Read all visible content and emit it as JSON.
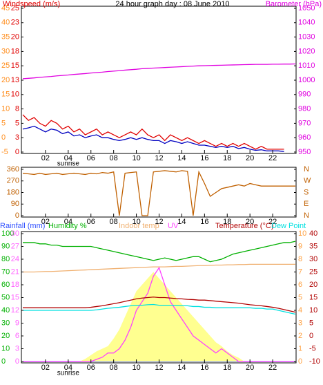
{
  "chart_data": [
    {
      "type": "line",
      "title": "24 hour graph day : 08 June 2010",
      "ylabel": "Windspeed (m/s)",
      "ylabel_color": "#e00000",
      "y2label": "Barometer (hPa)",
      "y2label_color": "#e000e0",
      "annotations": [
        {
          "text": "sunrise",
          "x": 4
        }
      ],
      "x": [
        0,
        0.5,
        1,
        1.5,
        2,
        2.5,
        3,
        3.5,
        4,
        4.5,
        5,
        5.5,
        6,
        6.5,
        7,
        7.5,
        8,
        8.5,
        9,
        9.5,
        10,
        10.5,
        11,
        11.5,
        12,
        12.5,
        13,
        13.5,
        14,
        14.5,
        15,
        15.5,
        16,
        16.5,
        17,
        17.5,
        18,
        18.5,
        19,
        19.5,
        20,
        20.5,
        21,
        21.5,
        22,
        22.5,
        23,
        23.5,
        24
      ],
      "xlim": [
        0,
        24
      ],
      "xticks": [
        {
          "value": 2,
          "label": "02"
        },
        {
          "value": 4,
          "label": "04"
        },
        {
          "value": 6,
          "label": "06"
        },
        {
          "value": 8,
          "label": "08"
        },
        10,
        12,
        14,
        16,
        18,
        20,
        22
      ],
      "ylim": [
        0,
        25
      ],
      "ytick_color": "#e00000",
      "yticks": [
        25,
        {
          "value": 22.5,
          "label": "23"
        },
        20,
        {
          "value": 17.5,
          "label": "18"
        },
        15,
        {
          "value": 12.5,
          "label": "13"
        },
        10,
        {
          "value": 7.5,
          "label": "8"
        },
        5,
        {
          "value": 2.5,
          "label": "3"
        },
        0
      ],
      "y3lim": [
        -5,
        45
      ],
      "y3tick_color": "#ff8c1a",
      "y3ticks": [
        45,
        40,
        35,
        30,
        25,
        20,
        15,
        10,
        5,
        0,
        -5
      ],
      "y2lim": [
        950,
        1050
      ],
      "y2tick_color": "#e000e0",
      "y2ticks": [
        1050,
        1040,
        1030,
        1020,
        1010,
        1000,
        990,
        980,
        970,
        960,
        950
      ],
      "series": [
        {
          "color": "#e00000",
          "axis": "y",
          "values": [
            6.5,
            5.5,
            6,
            5,
            4.5,
            5.5,
            5,
            4,
            4.5,
            3.5,
            4,
            3,
            3.5,
            4,
            3,
            3.5,
            3,
            2.5,
            3,
            3.5,
            3,
            4,
            3,
            2.5,
            3,
            2,
            3,
            2.5,
            2,
            2.5,
            2,
            1.5,
            2,
            1.5,
            1,
            1.5,
            1,
            1.5,
            1,
            1.5,
            1,
            0.5,
            1,
            0.5,
            0.5,
            0.5,
            0.5,
            null,
            null
          ]
        },
        {
          "color": "#0000c0",
          "axis": "y",
          "values": [
            4,
            4.2,
            4.5,
            4,
            3.5,
            4,
            3.8,
            3.2,
            3.5,
            2.8,
            3,
            2.5,
            2.8,
            3,
            2.5,
            2.5,
            2.2,
            2,
            2.2,
            2.5,
            2.2,
            2.5,
            2.2,
            2,
            2,
            1.5,
            2,
            1.8,
            1.5,
            1.8,
            1.5,
            1.2,
            1.2,
            1,
            0.8,
            1,
            0.8,
            1,
            0.6,
            0.8,
            0.5,
            0.3,
            0.4,
            0.2,
            0.2,
            0.2,
            0.1,
            null,
            null
          ]
        },
        {
          "color": "#e000e0",
          "axis": "y2",
          "values": [
            1001,
            1001.3,
            1001.6,
            1002,
            1002.3,
            1002.6,
            1003,
            1003.3,
            1003.6,
            1004,
            1004.3,
            1004.6,
            1005,
            1005.3,
            1005.6,
            1006,
            1006.3,
            1006.6,
            1007,
            1007.3,
            1007.6,
            1008,
            1008.2,
            1008.4,
            1008.6,
            1008.8,
            1009,
            1009.2,
            1009.4,
            1009.6,
            1009.8,
            1010,
            1010.1,
            1010.2,
            1010.3,
            1010.4,
            1010.5,
            1010.6,
            1010.7,
            1010.8,
            1010.9,
            1011,
            1011,
            1011,
            1011.1,
            1011.1,
            1011.2,
            1011.2,
            1011.3
          ]
        }
      ]
    },
    {
      "type": "line",
      "x": [
        0,
        0.5,
        1,
        1.5,
        2,
        2.5,
        3,
        3.5,
        4,
        4.5,
        5,
        5.5,
        6,
        6.5,
        7,
        7.5,
        8,
        8.5,
        9,
        9.5,
        10,
        10.5,
        11,
        11.5,
        12,
        12.5,
        13,
        13.5,
        14,
        14.5,
        15,
        15.5,
        16,
        16.5,
        17,
        17.5,
        18,
        18.5,
        19,
        19.5,
        20,
        20.5,
        21,
        21.5,
        22,
        22.5,
        23,
        23.5,
        24
      ],
      "xlim": [
        0,
        24
      ],
      "xticks": [
        {
          "value": 2,
          "label": "02"
        },
        {
          "value": 4,
          "label": "04"
        },
        {
          "value": 6,
          "label": "06"
        },
        {
          "value": 8,
          "label": "08"
        },
        10,
        12,
        14,
        16,
        18,
        20,
        22
      ],
      "ylim": [
        0,
        360
      ],
      "ytick_color": "#c06000",
      "yticks": [
        360,
        270,
        180,
        90,
        0
      ],
      "y2lim": [
        0,
        360
      ],
      "y2tick_color": "#c06000",
      "y2ticks": [
        {
          "value": 360,
          "label": "N"
        },
        {
          "value": 270,
          "label": "W"
        },
        {
          "value": 180,
          "label": "S"
        },
        {
          "value": 90,
          "label": "E"
        },
        {
          "value": 0,
          "label": "N"
        }
      ],
      "series": [
        {
          "color": "#c06000",
          "axis": "y",
          "values": [
            330,
            325,
            320,
            330,
            320,
            325,
            330,
            320,
            325,
            330,
            325,
            320,
            330,
            325,
            335,
            330,
            340,
            0,
            330,
            335,
            340,
            0,
            0,
            340,
            345,
            350,
            345,
            340,
            350,
            345,
            0,
            340,
            250,
            150,
            180,
            210,
            220,
            230,
            240,
            230,
            250,
            240,
            230,
            230,
            230,
            230,
            230,
            230,
            230
          ]
        }
      ]
    },
    {
      "type": "line",
      "annotations": [
        {
          "text": "sunrise",
          "x": 4
        }
      ],
      "x": [
        0,
        0.5,
        1,
        1.5,
        2,
        2.5,
        3,
        3.5,
        4,
        4.5,
        5,
        5.5,
        6,
        6.5,
        7,
        7.5,
        8,
        8.5,
        9,
        9.5,
        10,
        10.5,
        11,
        11.5,
        12,
        12.5,
        13,
        13.5,
        14,
        14.5,
        15,
        15.5,
        16,
        16.5,
        17,
        17.5,
        18,
        18.5,
        19,
        19.5,
        20,
        20.5,
        21,
        21.5,
        22,
        22.5,
        23,
        23.5,
        24
      ],
      "xlim": [
        0,
        24
      ],
      "xticks": [
        {
          "value": 2,
          "label": "02"
        },
        {
          "value": 4,
          "label": "04"
        },
        {
          "value": 6,
          "label": "06"
        },
        {
          "value": 8,
          "label": "08"
        },
        10,
        12,
        14,
        16,
        18,
        20,
        22
      ],
      "ylim": [
        0,
        100
      ],
      "ytick_color": "#00b000",
      "yticks": [
        100,
        90,
        80,
        70,
        60,
        50,
        40,
        30,
        20,
        10,
        0
      ],
      "y3lim": [
        0,
        30
      ],
      "y3tick_color": "#ff60ff",
      "y3ticks": [
        30,
        27,
        24,
        21,
        18,
        15,
        12,
        9,
        6,
        3,
        0
      ],
      "y4lim": [
        0,
        10
      ],
      "y4tick_color": "#ffa040",
      "y4ticks": [
        10,
        9,
        8,
        7,
        6,
        5,
        4,
        3,
        2,
        1,
        0
      ],
      "y2lim": [
        -10,
        40
      ],
      "y2tick_color": "#b00000",
      "y2ticks": [
        40,
        35,
        30,
        25,
        20,
        15,
        10,
        5,
        0,
        -5,
        -10
      ],
      "series": [
        {
          "name": "Rainfall (mm)",
          "color": "#3050ff",
          "axis": "y3",
          "values": [
            0,
            0,
            0,
            0,
            0,
            0,
            0,
            0,
            0,
            0,
            0,
            0,
            0,
            0,
            0,
            0,
            0,
            0,
            0,
            0,
            0,
            0,
            0,
            0,
            0,
            0,
            0,
            0,
            0,
            0,
            0,
            0,
            0,
            0,
            0,
            0,
            0,
            0,
            0,
            0,
            0,
            0,
            0,
            0,
            0,
            0,
            0,
            0,
            0
          ]
        },
        {
          "name": "Humidity %",
          "color": "#00b000",
          "axis": "y",
          "values": [
            93,
            93,
            93,
            92,
            92,
            91,
            91,
            90,
            90,
            90,
            90,
            90,
            90,
            89,
            88,
            87,
            86,
            85,
            84,
            83,
            82,
            81,
            80,
            79,
            80,
            81,
            80,
            79,
            80,
            81,
            82,
            82,
            80,
            78,
            79,
            80,
            82,
            84,
            85,
            86,
            87,
            88,
            89,
            90,
            91,
            92,
            93,
            93,
            94
          ]
        },
        {
          "color": "#ffff90",
          "axis": "y4",
          "kind": "area",
          "values": [
            0,
            0,
            0,
            0,
            0,
            0,
            0,
            0,
            0,
            0,
            0,
            0.2,
            0.5,
            0.8,
            1,
            1.2,
            1.8,
            2.5,
            3.5,
            4.5,
            5.5,
            6,
            6.5,
            7,
            6.5,
            6,
            5.5,
            5,
            4.5,
            4,
            3.5,
            3,
            2.5,
            2,
            1.5,
            1.2,
            0.8,
            0.5,
            0.3,
            0,
            0,
            0,
            0,
            0,
            0,
            0,
            0,
            0,
            0
          ]
        },
        {
          "name": "Indoor temp",
          "color": "#f0b070",
          "axis": "y2",
          "values": [
            25,
            25,
            25,
            25.1,
            25.2,
            25.2,
            25.3,
            25.4,
            25.5,
            25.6,
            25.7,
            25.8,
            25.9,
            26,
            26.1,
            26.2,
            26.3,
            26.4,
            26.5,
            26.6,
            26.7,
            26.8,
            26.9,
            27,
            27,
            27,
            27.1,
            27.2,
            27.2,
            27.3,
            27.4,
            27.5,
            27.5,
            27.6,
            27.7,
            27.7,
            27.8,
            27.8,
            27.9,
            27.9,
            28,
            28,
            28,
            28,
            28,
            28,
            28,
            28,
            28
          ]
        },
        {
          "name": "UV",
          "color": "#ff40ff",
          "axis": "y3",
          "values": [
            0,
            0,
            0,
            0,
            0,
            0,
            0,
            0,
            0,
            0,
            0,
            0,
            0,
            0.5,
            1,
            2,
            2,
            3,
            5,
            8,
            12,
            14,
            16,
            20,
            22,
            18,
            14,
            12,
            10,
            8,
            6,
            5,
            4,
            3,
            2,
            3,
            2,
            1,
            0,
            0,
            0,
            0,
            0,
            0,
            0,
            0,
            0,
            0,
            0
          ]
        },
        {
          "name": "Temperature (°C)",
          "color": "#b00000",
          "axis": "y2",
          "values": [
            11,
            11,
            11,
            11,
            11,
            11,
            11,
            11,
            11,
            11,
            11,
            11,
            11.2,
            11.5,
            11.8,
            12.2,
            12.6,
            13,
            13.5,
            14,
            14.5,
            14.8,
            15,
            15.2,
            15,
            15,
            14.8,
            14.6,
            14.5,
            14.3,
            14.2,
            14,
            14,
            13.8,
            13.6,
            13.4,
            13.2,
            13,
            12.8,
            12.5,
            12.2,
            12,
            11.8,
            11.5,
            11.2,
            10.8,
            10.3,
            9.8,
            9.3
          ]
        },
        {
          "name": "Dew Point",
          "color": "#00e0e0",
          "axis": "y2",
          "values": [
            10,
            10,
            10,
            10,
            10,
            10,
            10,
            10,
            10,
            10,
            10,
            10,
            10,
            10.2,
            10.5,
            10.8,
            11,
            11.2,
            11.5,
            11.8,
            12,
            12,
            12.2,
            12.3,
            12,
            12,
            12,
            12,
            11.8,
            11.8,
            11.5,
            11.5,
            11.2,
            11.2,
            11,
            11,
            11,
            11,
            11,
            11,
            11,
            10.8,
            10.8,
            10.5,
            10.5,
            10,
            9.5,
            9,
            8.5
          ]
        }
      ]
    }
  ]
}
